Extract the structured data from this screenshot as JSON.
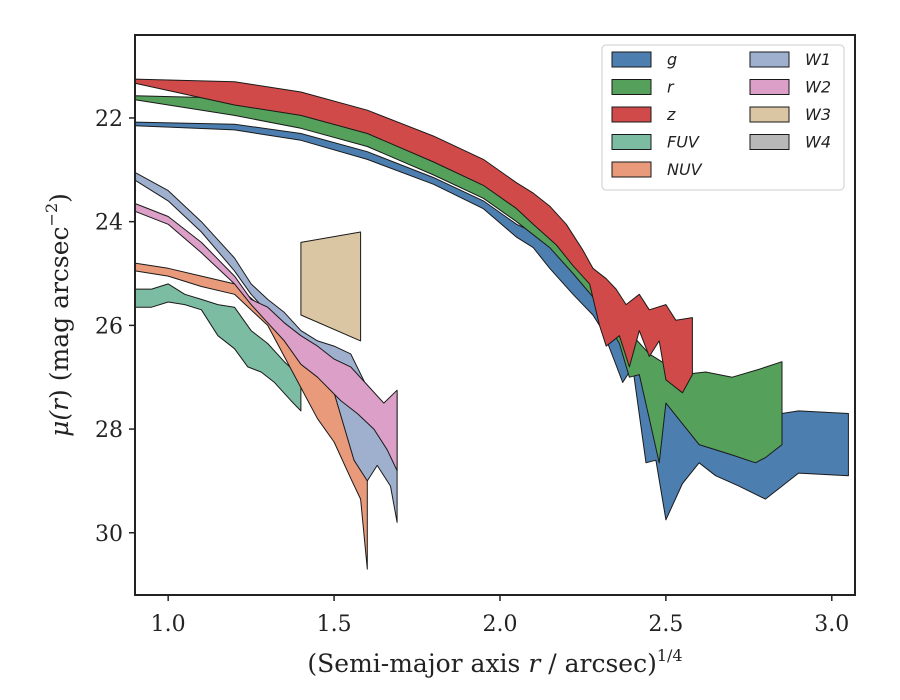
{
  "chart_data": {
    "type": "area",
    "xlabel_main": "(Semi-major axis ",
    "xlabel_var": "r",
    "xlabel_tail": " / arcsec)",
    "xlabel_power": "1/4",
    "ylabel_main": "μ(",
    "ylabel_var": "r",
    "ylabel_tail": ") (mag arcsec",
    "ylabel_power": "−2",
    "ylabel_close": ")",
    "xlim": [
      0.9,
      3.07
    ],
    "ylim": [
      31.2,
      20.4
    ],
    "y_inverted": true,
    "xticks": [
      1.0,
      1.5,
      2.0,
      2.5,
      3.0
    ],
    "xtick_labels": [
      "1.0",
      "1.5",
      "2.0",
      "2.5",
      "3.0"
    ],
    "yticks": [
      22,
      24,
      26,
      28,
      30
    ],
    "ytick_labels": [
      "22",
      "24",
      "26",
      "28",
      "30"
    ],
    "grid": false,
    "legend_placement": "top-right",
    "legend_columns": 2,
    "series": [
      {
        "name": "g",
        "color": "#4c7eb0",
        "upper": [
          [
            0.9,
            22.08
          ],
          [
            1.2,
            22.12
          ],
          [
            1.4,
            22.3
          ],
          [
            1.6,
            22.65
          ],
          [
            1.8,
            23.15
          ],
          [
            1.95,
            23.6
          ],
          [
            2.05,
            24.05
          ],
          [
            2.1,
            24.2
          ],
          [
            2.2,
            24.75
          ],
          [
            2.25,
            25.15
          ],
          [
            2.3,
            25.55
          ],
          [
            2.33,
            26.0
          ],
          [
            2.36,
            26.3
          ],
          [
            2.38,
            26.15
          ],
          [
            2.4,
            26.6
          ],
          [
            2.42,
            26.9
          ],
          [
            2.45,
            27.1
          ],
          [
            2.5,
            27.4
          ],
          [
            2.55,
            27.6
          ],
          [
            2.6,
            27.6
          ],
          [
            2.7,
            27.8
          ],
          [
            2.8,
            27.75
          ],
          [
            2.9,
            27.65
          ],
          [
            3.05,
            27.7
          ]
        ],
        "lower": [
          [
            3.05,
            28.9
          ],
          [
            2.9,
            28.85
          ],
          [
            2.8,
            29.35
          ],
          [
            2.72,
            29.1
          ],
          [
            2.65,
            28.9
          ],
          [
            2.6,
            28.65
          ],
          [
            2.55,
            29.05
          ],
          [
            2.5,
            29.75
          ],
          [
            2.47,
            28.6
          ],
          [
            2.44,
            28.65
          ],
          [
            2.4,
            26.8
          ],
          [
            2.37,
            27.1
          ],
          [
            2.34,
            26.6
          ],
          [
            2.31,
            26.1
          ],
          [
            2.28,
            25.8
          ],
          [
            2.22,
            25.4
          ],
          [
            2.15,
            24.9
          ],
          [
            2.1,
            24.5
          ],
          [
            2.05,
            24.3
          ],
          [
            1.95,
            23.75
          ],
          [
            1.8,
            23.28
          ],
          [
            1.6,
            22.8
          ],
          [
            1.4,
            22.43
          ],
          [
            1.2,
            22.23
          ],
          [
            0.9,
            22.15
          ]
        ]
      },
      {
        "name": "r",
        "color": "#55a05a",
        "upper": [
          [
            0.9,
            21.57
          ],
          [
            1.2,
            21.62
          ],
          [
            1.4,
            21.8
          ],
          [
            1.6,
            22.15
          ],
          [
            1.8,
            22.65
          ],
          [
            1.95,
            23.05
          ],
          [
            2.05,
            23.5
          ],
          [
            2.15,
            23.95
          ],
          [
            2.22,
            24.35
          ],
          [
            2.28,
            24.9
          ],
          [
            2.32,
            25.3
          ],
          [
            2.36,
            25.7
          ],
          [
            2.4,
            26.2
          ],
          [
            2.45,
            26.55
          ],
          [
            2.5,
            26.75
          ],
          [
            2.55,
            26.95
          ],
          [
            2.62,
            26.9
          ],
          [
            2.7,
            27.0
          ],
          [
            2.78,
            26.85
          ],
          [
            2.85,
            26.7
          ]
        ],
        "lower": [
          [
            2.85,
            28.3
          ],
          [
            2.8,
            28.55
          ],
          [
            2.77,
            28.65
          ],
          [
            2.7,
            28.5
          ],
          [
            2.6,
            28.3
          ],
          [
            2.5,
            27.5
          ],
          [
            2.48,
            28.65
          ],
          [
            2.45,
            27.8
          ],
          [
            2.42,
            26.95
          ],
          [
            2.39,
            27.0
          ],
          [
            2.36,
            26.35
          ],
          [
            2.32,
            25.9
          ],
          [
            2.28,
            25.45
          ],
          [
            2.22,
            25.0
          ],
          [
            2.15,
            24.5
          ],
          [
            2.05,
            24.0
          ],
          [
            1.95,
            23.55
          ],
          [
            1.8,
            23.1
          ],
          [
            1.6,
            22.55
          ],
          [
            1.4,
            22.2
          ],
          [
            1.2,
            21.95
          ],
          [
            0.9,
            21.65
          ]
        ]
      },
      {
        "name": "z",
        "color": "#d04a49",
        "upper": [
          [
            0.9,
            21.25
          ],
          [
            1.2,
            21.3
          ],
          [
            1.4,
            21.5
          ],
          [
            1.6,
            21.85
          ],
          [
            1.8,
            22.35
          ],
          [
            1.95,
            22.8
          ],
          [
            2.05,
            23.25
          ],
          [
            2.1,
            23.45
          ],
          [
            2.15,
            23.7
          ],
          [
            2.2,
            24.05
          ],
          [
            2.25,
            24.55
          ],
          [
            2.28,
            24.9
          ],
          [
            2.32,
            25.1
          ],
          [
            2.35,
            25.3
          ],
          [
            2.38,
            25.6
          ],
          [
            2.42,
            25.4
          ],
          [
            2.45,
            25.7
          ],
          [
            2.5,
            25.6
          ],
          [
            2.53,
            25.9
          ],
          [
            2.58,
            25.85
          ]
        ],
        "lower": [
          [
            2.58,
            26.95
          ],
          [
            2.55,
            27.3
          ],
          [
            2.5,
            27.05
          ],
          [
            2.48,
            26.3
          ],
          [
            2.45,
            26.6
          ],
          [
            2.42,
            26.1
          ],
          [
            2.39,
            26.8
          ],
          [
            2.36,
            26.2
          ],
          [
            2.32,
            26.4
          ],
          [
            2.3,
            26.0
          ],
          [
            2.27,
            25.2
          ],
          [
            2.22,
            24.85
          ],
          [
            2.17,
            24.45
          ],
          [
            2.1,
            24.05
          ],
          [
            2.05,
            23.75
          ],
          [
            1.95,
            23.3
          ],
          [
            1.8,
            22.85
          ],
          [
            1.6,
            22.3
          ],
          [
            1.4,
            21.95
          ],
          [
            1.2,
            21.75
          ],
          [
            0.9,
            21.33
          ]
        ]
      },
      {
        "name": "FUV",
        "color": "#7bbca3",
        "upper": [
          [
            0.9,
            25.3
          ],
          [
            0.95,
            25.3
          ],
          [
            1.0,
            25.2
          ],
          [
            1.05,
            25.4
          ],
          [
            1.1,
            25.5
          ],
          [
            1.15,
            25.6
          ],
          [
            1.2,
            25.65
          ],
          [
            1.25,
            26.1
          ],
          [
            1.3,
            26.35
          ],
          [
            1.35,
            26.7
          ],
          [
            1.4,
            27.0
          ]
        ],
        "lower": [
          [
            1.4,
            27.65
          ],
          [
            1.37,
            27.45
          ],
          [
            1.32,
            27.1
          ],
          [
            1.28,
            26.9
          ],
          [
            1.24,
            26.8
          ],
          [
            1.2,
            26.45
          ],
          [
            1.15,
            26.2
          ],
          [
            1.1,
            25.7
          ],
          [
            1.05,
            25.6
          ],
          [
            1.0,
            25.55
          ],
          [
            0.95,
            25.65
          ],
          [
            0.9,
            25.65
          ]
        ]
      },
      {
        "name": "NUV",
        "color": "#e99a7a",
        "upper": [
          [
            0.9,
            24.8
          ],
          [
            1.0,
            24.9
          ],
          [
            1.1,
            25.05
          ],
          [
            1.2,
            25.2
          ],
          [
            1.3,
            25.75
          ],
          [
            1.35,
            26.2
          ],
          [
            1.4,
            26.5
          ],
          [
            1.45,
            26.7
          ],
          [
            1.5,
            27.2
          ],
          [
            1.55,
            27.45
          ],
          [
            1.6,
            28.7
          ]
        ],
        "lower": [
          [
            1.6,
            30.7
          ],
          [
            1.58,
            29.35
          ],
          [
            1.55,
            28.95
          ],
          [
            1.5,
            28.25
          ],
          [
            1.45,
            27.8
          ],
          [
            1.4,
            27.2
          ],
          [
            1.35,
            26.6
          ],
          [
            1.3,
            26.0
          ],
          [
            1.2,
            25.4
          ],
          [
            1.1,
            25.25
          ],
          [
            1.0,
            25.05
          ],
          [
            0.9,
            24.95
          ]
        ]
      },
      {
        "name": "W1",
        "color": "#9fb0cf",
        "upper": [
          [
            0.9,
            23.05
          ],
          [
            1.0,
            23.4
          ],
          [
            1.1,
            24.0
          ],
          [
            1.2,
            24.7
          ],
          [
            1.25,
            25.2
          ],
          [
            1.3,
            25.5
          ],
          [
            1.35,
            25.75
          ],
          [
            1.4,
            26.1
          ],
          [
            1.45,
            26.3
          ],
          [
            1.5,
            26.4
          ],
          [
            1.55,
            26.55
          ],
          [
            1.6,
            27.2
          ],
          [
            1.65,
            27.6
          ],
          [
            1.69,
            27.3
          ]
        ],
        "lower": [
          [
            1.69,
            29.8
          ],
          [
            1.67,
            29.1
          ],
          [
            1.63,
            28.7
          ],
          [
            1.6,
            29.0
          ],
          [
            1.56,
            28.6
          ],
          [
            1.5,
            27.3
          ],
          [
            1.45,
            26.9
          ],
          [
            1.4,
            26.5
          ],
          [
            1.35,
            26.1
          ],
          [
            1.3,
            25.75
          ],
          [
            1.25,
            25.4
          ],
          [
            1.2,
            24.95
          ],
          [
            1.1,
            24.2
          ],
          [
            1.0,
            23.6
          ],
          [
            0.9,
            23.2
          ]
        ]
      },
      {
        "name": "W2",
        "color": "#db9fc8",
        "upper": [
          [
            0.9,
            23.65
          ],
          [
            1.0,
            23.9
          ],
          [
            1.1,
            24.4
          ],
          [
            1.2,
            25.05
          ],
          [
            1.25,
            25.5
          ],
          [
            1.3,
            25.65
          ],
          [
            1.35,
            25.95
          ],
          [
            1.4,
            26.2
          ],
          [
            1.45,
            26.4
          ],
          [
            1.5,
            26.65
          ],
          [
            1.55,
            26.8
          ],
          [
            1.6,
            27.15
          ],
          [
            1.65,
            27.5
          ],
          [
            1.69,
            27.25
          ]
        ],
        "lower": [
          [
            1.69,
            28.8
          ],
          [
            1.66,
            28.4
          ],
          [
            1.62,
            28.0
          ],
          [
            1.57,
            27.7
          ],
          [
            1.52,
            27.45
          ],
          [
            1.45,
            27.0
          ],
          [
            1.4,
            26.75
          ],
          [
            1.35,
            26.3
          ],
          [
            1.3,
            25.95
          ],
          [
            1.25,
            25.6
          ],
          [
            1.2,
            25.2
          ],
          [
            1.1,
            24.6
          ],
          [
            1.0,
            24.05
          ],
          [
            0.9,
            23.8
          ]
        ]
      },
      {
        "name": "W3",
        "color": "#dbc6a4",
        "upper": [
          [
            1.4,
            24.4
          ],
          [
            1.58,
            24.2
          ]
        ],
        "lower": [
          [
            1.58,
            26.3
          ],
          [
            1.4,
            25.8
          ]
        ]
      },
      {
        "name": "W4",
        "color": "#b8b8b8",
        "upper": [],
        "lower": []
      }
    ]
  }
}
